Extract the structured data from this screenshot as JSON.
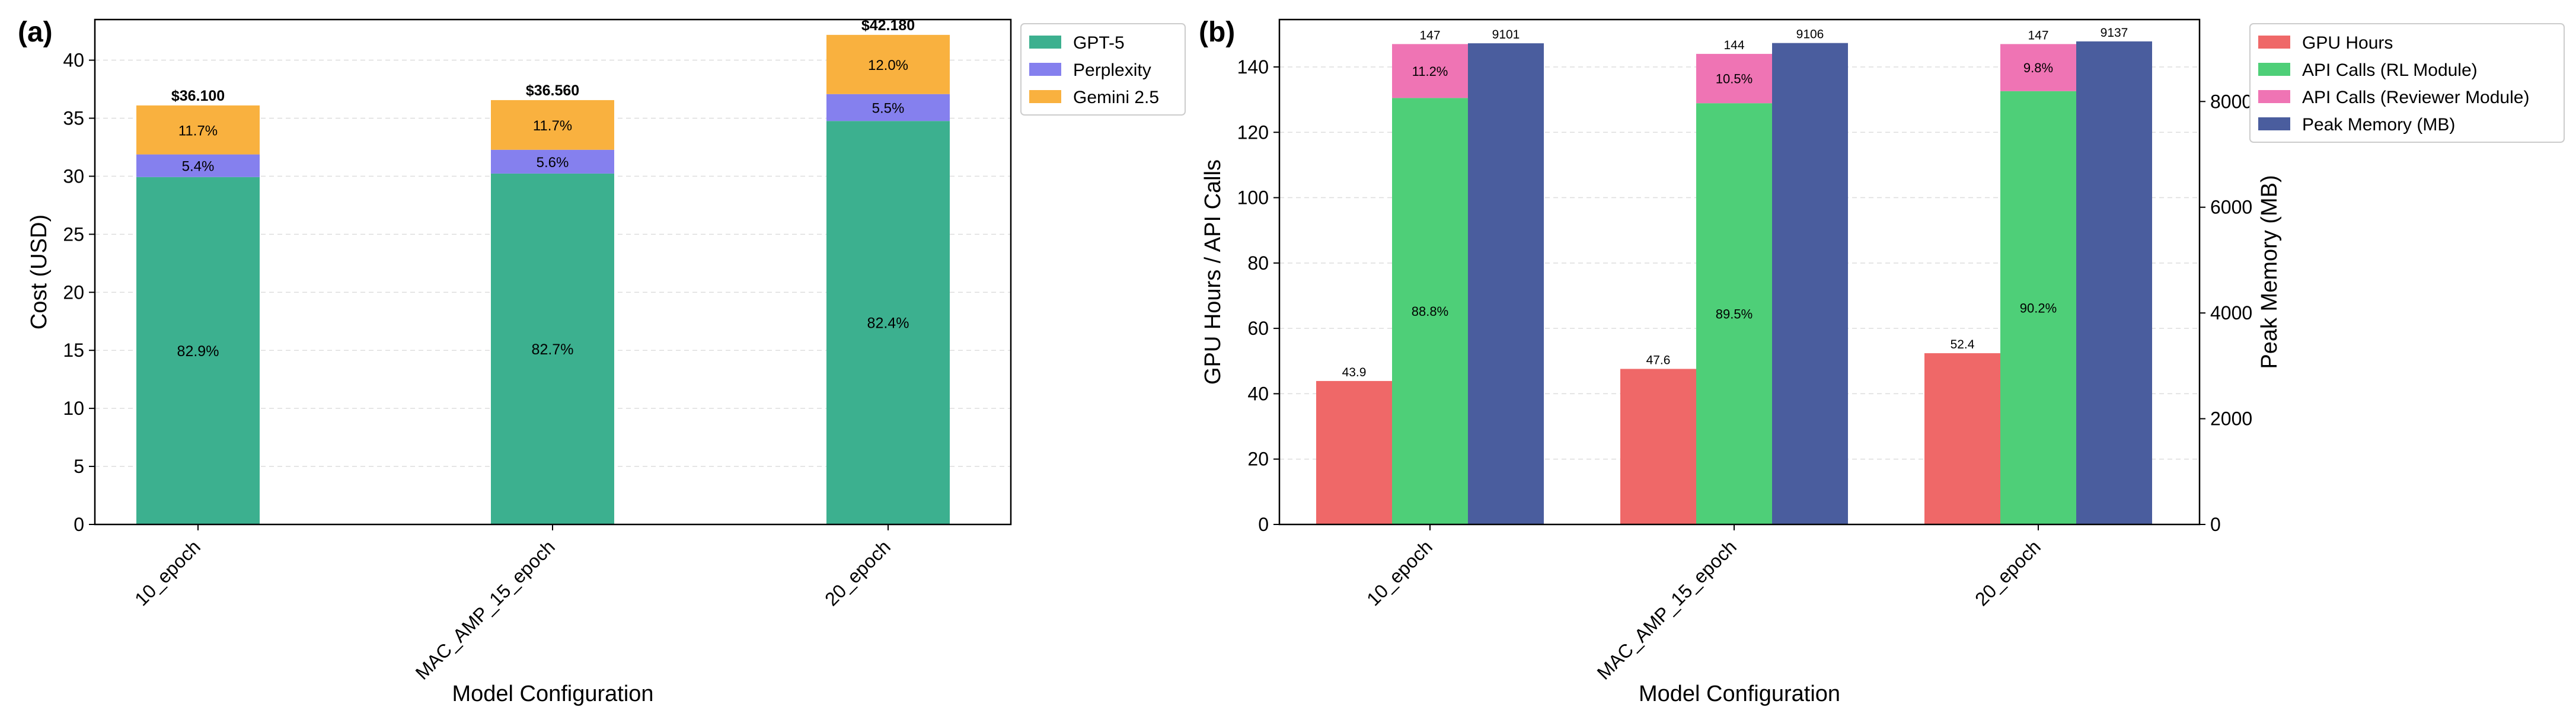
{
  "chart_data": [
    {
      "panel_label": "(a)",
      "type": "bar",
      "stacked": true,
      "categories": [
        "10_epoch",
        "MAC_AMP_15_epoch",
        "20_epoch"
      ],
      "series": [
        {
          "name": "GPT-5",
          "values": [
            29.93,
            30.23,
            34.76
          ],
          "color": "#3cb08f",
          "segment_labels": [
            "82.9%",
            "82.7%",
            "82.4%"
          ]
        },
        {
          "name": "Perplexity",
          "values": [
            1.95,
            2.05,
            2.32
          ],
          "color": "#8580ee",
          "segment_labels": [
            "5.4%",
            "5.6%",
            "5.5%"
          ]
        },
        {
          "name": "Gemini 2.5",
          "values": [
            4.22,
            4.28,
            5.1
          ],
          "color": "#f9b13f",
          "segment_labels": [
            "11.7%",
            "11.7%",
            "12.0%"
          ]
        }
      ],
      "totals": [
        "$36.100",
        "$36.560",
        "$42.180"
      ],
      "total_values": [
        36.1,
        36.56,
        42.18
      ],
      "xlabel": "Model Configuration",
      "ylabel": "Cost (USD)",
      "ylim": [
        0,
        43.5
      ],
      "yticks": [
        0,
        5,
        10,
        15,
        20,
        25,
        30,
        35,
        40
      ],
      "grid": true,
      "legend": "top-right, outside"
    },
    {
      "panel_label": "(b)",
      "type": "bar",
      "categories": [
        "10_epoch",
        "MAC_AMP_15_epoch",
        "20_epoch"
      ],
      "series": [
        {
          "name": "GPU Hours",
          "axis": "left",
          "values": [
            43.9,
            47.6,
            52.4
          ],
          "labels": [
            "43.9",
            "47.6",
            "52.4"
          ],
          "color": "#ef6868"
        },
        {
          "name": "API Calls (RL Module)",
          "axis": "left",
          "stack": "api",
          "values": [
            130.5,
            128.9,
            132.6
          ],
          "segment_labels": [
            "88.8%",
            "89.5%",
            "90.2%"
          ],
          "color": "#4ecf78"
        },
        {
          "name": "API Calls (Reviewer Module)",
          "axis": "left",
          "stack": "api",
          "values": [
            16.5,
            15.1,
            14.4
          ],
          "segment_labels": [
            "11.2%",
            "10.5%",
            "9.8%"
          ],
          "color": "#ef74b4"
        },
        {
          "name": "Peak Memory (MB)",
          "axis": "right",
          "values": [
            9101,
            9106,
            9137
          ],
          "labels": [
            "9101",
            "9106",
            "9137"
          ],
          "color": "#4a5d9e"
        }
      ],
      "api_totals": [
        "147",
        "144",
        "147"
      ],
      "api_total_values": [
        147,
        144,
        147
      ],
      "xlabel": "Model Configuration",
      "ylabel": "GPU Hours / API Calls",
      "ylabel_right": "Peak Memory (MB)",
      "ylim": [
        0,
        154.5
      ],
      "yticks": [
        0,
        20,
        40,
        60,
        80,
        100,
        120,
        140
      ],
      "ylim_right": [
        0,
        9550
      ],
      "yticks_right": [
        0,
        2000,
        4000,
        6000,
        8000
      ],
      "grid": true,
      "legend": "top-right, outside"
    }
  ]
}
